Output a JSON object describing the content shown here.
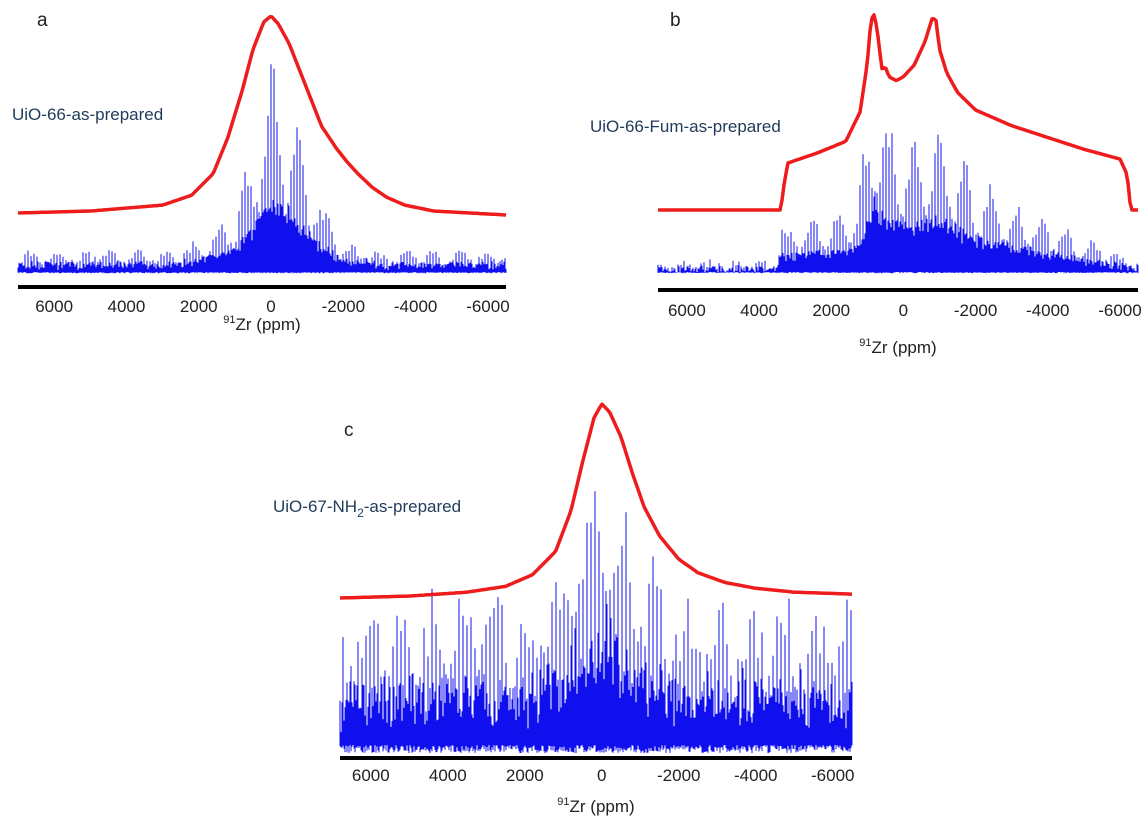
{
  "colors": {
    "fit": "#ee1c1c",
    "experimental": "#1010ee",
    "axis": "#000000"
  },
  "chart_data": [
    {
      "type": "line",
      "panel": "a",
      "sample_label": "UiO-66-as-prepared",
      "xlabel_sup": "91",
      "xlabel_main": "Zr (ppm)",
      "xlim": [
        7000,
        -6500
      ],
      "ticks": [
        6000,
        4000,
        2000,
        0,
        -2000,
        -4000,
        -6000
      ],
      "tick_labels": [
        "6000",
        "4000",
        "2000",
        "0",
        "-2000",
        "-4000",
        "-6000"
      ],
      "series": [
        {
          "role": "simulated",
          "x": [
            7000,
            5000,
            3000,
            2200,
            1600,
            1200,
            800,
            500,
            200,
            0,
            -200,
            -500,
            -800,
            -1100,
            -1400,
            -1800,
            -2100,
            -2400,
            -2800,
            -3200,
            -3700,
            -4500,
            -5500,
            -6500
          ],
          "y": [
            0.0,
            0.01,
            0.04,
            0.09,
            0.2,
            0.38,
            0.62,
            0.83,
            0.97,
            1.0,
            0.96,
            0.86,
            0.72,
            0.58,
            0.44,
            0.33,
            0.26,
            0.2,
            0.13,
            0.08,
            0.04,
            0.01,
            0.0,
            -0.01
          ]
        },
        {
          "role": "experimental",
          "envelope_x": [
            7000,
            3000,
            2000,
            1000,
            500,
            0,
            -500,
            -1000,
            -1500,
            -2000,
            -3000,
            -6500
          ],
          "envelope_y": [
            0.1,
            0.1,
            0.13,
            0.3,
            0.6,
            1.0,
            0.8,
            0.55,
            0.3,
            0.15,
            0.1,
            0.1
          ],
          "spinning_sideband_spacing": 80
        }
      ]
    },
    {
      "type": "line",
      "panel": "b",
      "sample_label": "UiO-66-Fum-as-prepared",
      "xlabel_sup": "91",
      "xlabel_main": "Zr (ppm)",
      "xlim": [
        6800,
        -6500
      ],
      "ticks": [
        6000,
        4000,
        2000,
        0,
        -2000,
        -4000,
        -6000
      ],
      "tick_labels": [
        "6000",
        "4000",
        "2000",
        "0",
        "-2000",
        "-4000",
        "-6000"
      ],
      "series": [
        {
          "role": "simulated",
          "x": [
            6800,
            3400,
            3300,
            3200,
            2400,
            1600,
            1200,
            1000,
            900,
            800,
            700,
            600,
            500,
            400,
            200,
            0,
            -300,
            -600,
            -800,
            -900,
            -1000,
            -1200,
            -1500,
            -2000,
            -3000,
            -4000,
            -5000,
            -6000,
            -6200,
            -6300,
            -6500
          ],
          "y": [
            0.0,
            0.0,
            0.14,
            0.24,
            0.29,
            0.35,
            0.5,
            0.75,
            0.97,
            1.0,
            0.88,
            0.72,
            0.73,
            0.68,
            0.66,
            0.68,
            0.74,
            0.86,
            0.98,
            0.97,
            0.82,
            0.7,
            0.6,
            0.51,
            0.43,
            0.37,
            0.31,
            0.26,
            0.18,
            0.0,
            0.0
          ]
        },
        {
          "role": "experimental",
          "envelope_x": [
            6800,
            3500,
            3400,
            2000,
            1300,
            1000,
            800,
            600,
            300,
            0,
            -400,
            -800,
            -1000,
            -1500,
            -2000,
            -3000,
            -4000,
            -5000,
            -6000,
            -6500
          ],
          "envelope_y": [
            0.05,
            0.05,
            0.25,
            0.3,
            0.35,
            0.75,
            1.0,
            0.85,
            0.78,
            0.7,
            0.7,
            0.75,
            0.78,
            0.62,
            0.5,
            0.37,
            0.28,
            0.18,
            0.1,
            0.05
          ],
          "spinning_sideband_spacing": 80
        }
      ]
    },
    {
      "type": "line",
      "panel": "c",
      "sample_label_main": "UiO-67-NH",
      "sample_label_sub": "2",
      "sample_label_tail": "-as-prepared",
      "xlabel_sup": "91",
      "xlabel_main": "Zr (ppm)",
      "xlim": [
        6800,
        -6500
      ],
      "ticks": [
        6000,
        4000,
        2000,
        0,
        -2000,
        -4000,
        -6000
      ],
      "tick_labels": [
        "6000",
        "4000",
        "2000",
        "0",
        "-2000",
        "-4000",
        "-6000"
      ],
      "series": [
        {
          "role": "simulated",
          "x": [
            6800,
            5000,
            3500,
            2500,
            1800,
            1200,
            800,
            500,
            200,
            0,
            -200,
            -500,
            -800,
            -1100,
            -1500,
            -2000,
            -2500,
            -3200,
            -4000,
            -5000,
            -6500
          ],
          "y": [
            0.0,
            0.01,
            0.03,
            0.06,
            0.12,
            0.24,
            0.45,
            0.7,
            0.93,
            1.0,
            0.96,
            0.83,
            0.64,
            0.47,
            0.32,
            0.2,
            0.13,
            0.08,
            0.05,
            0.03,
            0.02
          ]
        },
        {
          "role": "experimental",
          "envelope_x": [
            6800,
            2000,
            1000,
            500,
            0,
            -500,
            -1000,
            -2000,
            -6500
          ],
          "envelope_y": [
            0.45,
            0.5,
            0.6,
            0.85,
            1.0,
            0.85,
            0.65,
            0.5,
            0.45
          ],
          "spinning_sideband_spacing": 35
        }
      ]
    }
  ]
}
